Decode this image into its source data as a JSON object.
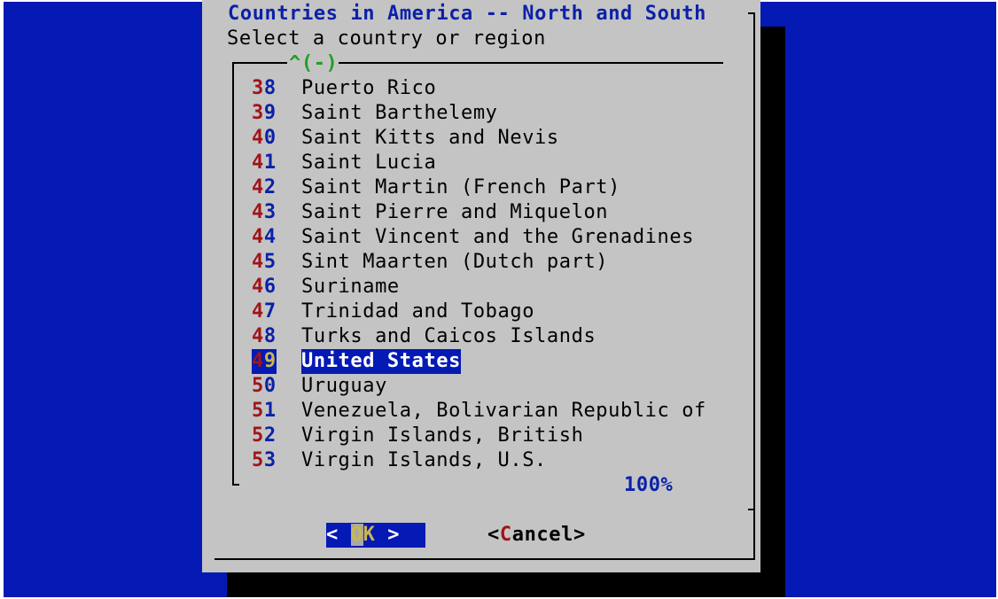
{
  "dialog": {
    "title": "Countries in America -- North and South",
    "subtitle": "Select a country or region",
    "scroll_indicator": "^(-)",
    "scroll_percent": "100%"
  },
  "list": {
    "items": [
      {
        "num_first": "3",
        "num_rest": "8",
        "label": "Puerto Rico"
      },
      {
        "num_first": "3",
        "num_rest": "9",
        "label": "Saint Barthelemy"
      },
      {
        "num_first": "4",
        "num_rest": "0",
        "label": "Saint Kitts and Nevis"
      },
      {
        "num_first": "4",
        "num_rest": "1",
        "label": "Saint Lucia"
      },
      {
        "num_first": "4",
        "num_rest": "2",
        "label": "Saint Martin (French Part)"
      },
      {
        "num_first": "4",
        "num_rest": "3",
        "label": "Saint Pierre and Miquelon"
      },
      {
        "num_first": "4",
        "num_rest": "4",
        "label": "Saint Vincent and the Grenadines"
      },
      {
        "num_first": "4",
        "num_rest": "5",
        "label": "Sint Maarten (Dutch part)"
      },
      {
        "num_first": "4",
        "num_rest": "6",
        "label": "Suriname"
      },
      {
        "num_first": "4",
        "num_rest": "7",
        "label": "Trinidad and Tobago"
      },
      {
        "num_first": "4",
        "num_rest": "8",
        "label": "Turks and Caicos Islands"
      },
      {
        "num_first": "4",
        "num_rest": "9",
        "label": "United States"
      },
      {
        "num_first": "5",
        "num_rest": "0",
        "label": "Uruguay"
      },
      {
        "num_first": "5",
        "num_rest": "1",
        "label": "Venezuela, Bolivarian Republic of"
      },
      {
        "num_first": "5",
        "num_rest": "2",
        "label": "Virgin Islands, British"
      },
      {
        "num_first": "5",
        "num_rest": "3",
        "label": "Virgin Islands, U.S."
      }
    ],
    "selected_index": 11
  },
  "buttons": {
    "ok": {
      "open": "< ",
      "hot": "O",
      "rest": "K",
      "close": " >"
    },
    "cancel": {
      "open": "<",
      "hot": "C",
      "rest": "ancel",
      "close": ">"
    }
  },
  "colors": {
    "background": "#0519b4",
    "dialog": "#c4c4c4",
    "title": "#0b21a8",
    "hotkey": "#a0141a",
    "scroll_indicator": "#20a020"
  }
}
